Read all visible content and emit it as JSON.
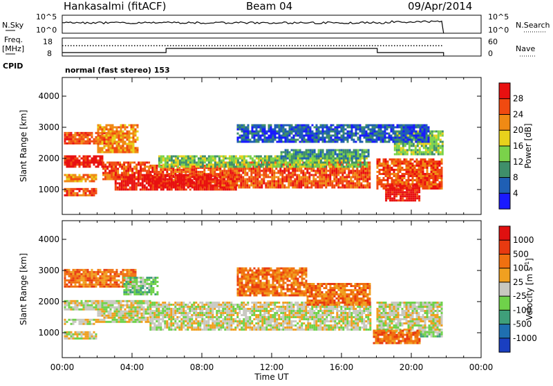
{
  "header": {
    "station": "Hankasalmi (fitACF)",
    "beam": "Beam 04",
    "date": "09/Apr/2014"
  },
  "status_panel": {
    "nsky_label": "N.Sky",
    "nsearch_label": "N.Search",
    "freq_label_1": "Freq.",
    "freq_label_2": "[MHz]",
    "nave_label": "Nave",
    "cpid_label": "CPID",
    "cpid_text": "normal (fast stereo) 153",
    "sky_tick_hi": "10^5",
    "sky_tick_lo": "10^0",
    "search_tick_hi": "10^5",
    "search_tick_lo": "10^0",
    "freq_tick_hi": "18",
    "freq_tick_lo": "8",
    "nave_tick_hi": "60",
    "nave_tick_lo": "0"
  },
  "chart_data": [
    {
      "type": "heatmap",
      "name": "power",
      "ylabel": "Slant Range [km]",
      "xlabel": "Time UT",
      "xlim": [
        0,
        24
      ],
      "ylim": [
        200,
        4600
      ],
      "yticks": [
        "1000",
        "2000",
        "3000",
        "4000"
      ],
      "colorbar": {
        "label": "Power [dB]",
        "ticks": [
          "4",
          "8",
          "12",
          "16",
          "20",
          "24",
          "28"
        ],
        "colors": [
          "#1a1aff",
          "#1f5fb4",
          "#3f8f6a",
          "#7ad24a",
          "#e8d21c",
          "#f08a14",
          "#f04a10",
          "#e81010"
        ]
      },
      "regions": [
        {
          "t0": 0.1,
          "t1": 3.0,
          "r0": 2500,
          "r1": 2850,
          "level": 6
        },
        {
          "t0": 2.0,
          "t1": 4.3,
          "r0": 2200,
          "r1": 3100,
          "level": 5
        },
        {
          "t0": 0.1,
          "t1": 2.3,
          "r0": 1750,
          "r1": 2100,
          "level": 7
        },
        {
          "t0": 2.3,
          "t1": 5.0,
          "r0": 1300,
          "r1": 1900,
          "level": 6
        },
        {
          "t0": 5.0,
          "t1": 9.0,
          "r0": 1100,
          "r1": 1800,
          "level": 6
        },
        {
          "t0": 0.1,
          "t1": 2.0,
          "r0": 1250,
          "r1": 1500,
          "level": 5
        },
        {
          "t0": 0.1,
          "t1": 2.0,
          "r0": 800,
          "r1": 1050,
          "level": 6
        },
        {
          "t0": 3.0,
          "t1": 10.0,
          "r0": 1000,
          "r1": 1500,
          "level": 7
        },
        {
          "t0": 9.0,
          "t1": 17.6,
          "r0": 1050,
          "r1": 1900,
          "level": 6
        },
        {
          "t0": 5.5,
          "t1": 17.5,
          "r0": 1750,
          "r1": 2100,
          "level": 3
        },
        {
          "t0": 12.5,
          "t1": 17.5,
          "r0": 2000,
          "r1": 2300,
          "level": 2
        },
        {
          "t0": 18.0,
          "t1": 21.8,
          "r0": 1000,
          "r1": 2000,
          "level": 6
        },
        {
          "t0": 18.5,
          "t1": 20.5,
          "r0": 650,
          "r1": 1150,
          "level": 7
        },
        {
          "t0": 19.0,
          "t1": 21.8,
          "r0": 2100,
          "r1": 2900,
          "level": 3
        },
        {
          "t0": 10.0,
          "t1": 21.0,
          "r0": 2500,
          "r1": 3100,
          "level": 1
        }
      ]
    },
    {
      "type": "heatmap",
      "name": "velocity",
      "ylabel": "Slant Range [km]",
      "xlabel": "Time UT",
      "xlim": [
        0,
        24
      ],
      "ylim": [
        200,
        4600
      ],
      "yticks": [
        "1000",
        "2000",
        "3000",
        "4000"
      ],
      "colorbar": {
        "label": "Velocity [m s",
        "label_sup": "-1",
        "label_end": "]",
        "ticks": [
          "1000",
          "500",
          "100",
          "25",
          "-25",
          "-100",
          "-500",
          "-1000"
        ],
        "colors": [
          "#1a3fc0",
          "#1f6fb0",
          "#3f9f7a",
          "#6fd24a",
          "#c8c8c0",
          "#f0a020",
          "#f07010",
          "#e83a10",
          "#e01010"
        ]
      },
      "regions": [
        {
          "t0": 0.1,
          "t1": 4.2,
          "r0": 2500,
          "r1": 3050,
          "level": 6
        },
        {
          "t0": 0.1,
          "t1": 2.0,
          "r0": 1750,
          "r1": 2050,
          "level": 4
        },
        {
          "t0": 2.0,
          "t1": 5.0,
          "r0": 1350,
          "r1": 2050,
          "level": 4
        },
        {
          "t0": 5.0,
          "t1": 17.6,
          "r0": 1100,
          "r1": 2000,
          "level": 4
        },
        {
          "t0": 0.1,
          "t1": 2.0,
          "r0": 1250,
          "r1": 1450,
          "level": 4
        },
        {
          "t0": 0.1,
          "t1": 2.0,
          "r0": 800,
          "r1": 1050,
          "level": 4
        },
        {
          "t0": 18.0,
          "t1": 21.8,
          "r0": 1000,
          "r1": 2000,
          "level": 4
        },
        {
          "t0": 17.8,
          "t1": 20.5,
          "r0": 650,
          "r1": 1100,
          "level": 6
        },
        {
          "t0": 20.5,
          "t1": 21.8,
          "r0": 850,
          "r1": 1050,
          "level": 3
        },
        {
          "t0": 10.0,
          "t1": 14.0,
          "r0": 2200,
          "r1": 3100,
          "level": 6
        },
        {
          "t0": 14.0,
          "t1": 17.6,
          "r0": 1900,
          "r1": 2600,
          "level": 6
        },
        {
          "t0": 3.5,
          "t1": 5.5,
          "r0": 2200,
          "r1": 2800,
          "level": 3
        }
      ]
    }
  ],
  "time_axis": {
    "ticks": [
      "00:00",
      "04:00",
      "08:00",
      "12:00",
      "16:00",
      "20:00",
      "00:00"
    ],
    "label": "Time UT"
  },
  "colors": {
    "axis": "#000000",
    "background": "#ffffff"
  }
}
